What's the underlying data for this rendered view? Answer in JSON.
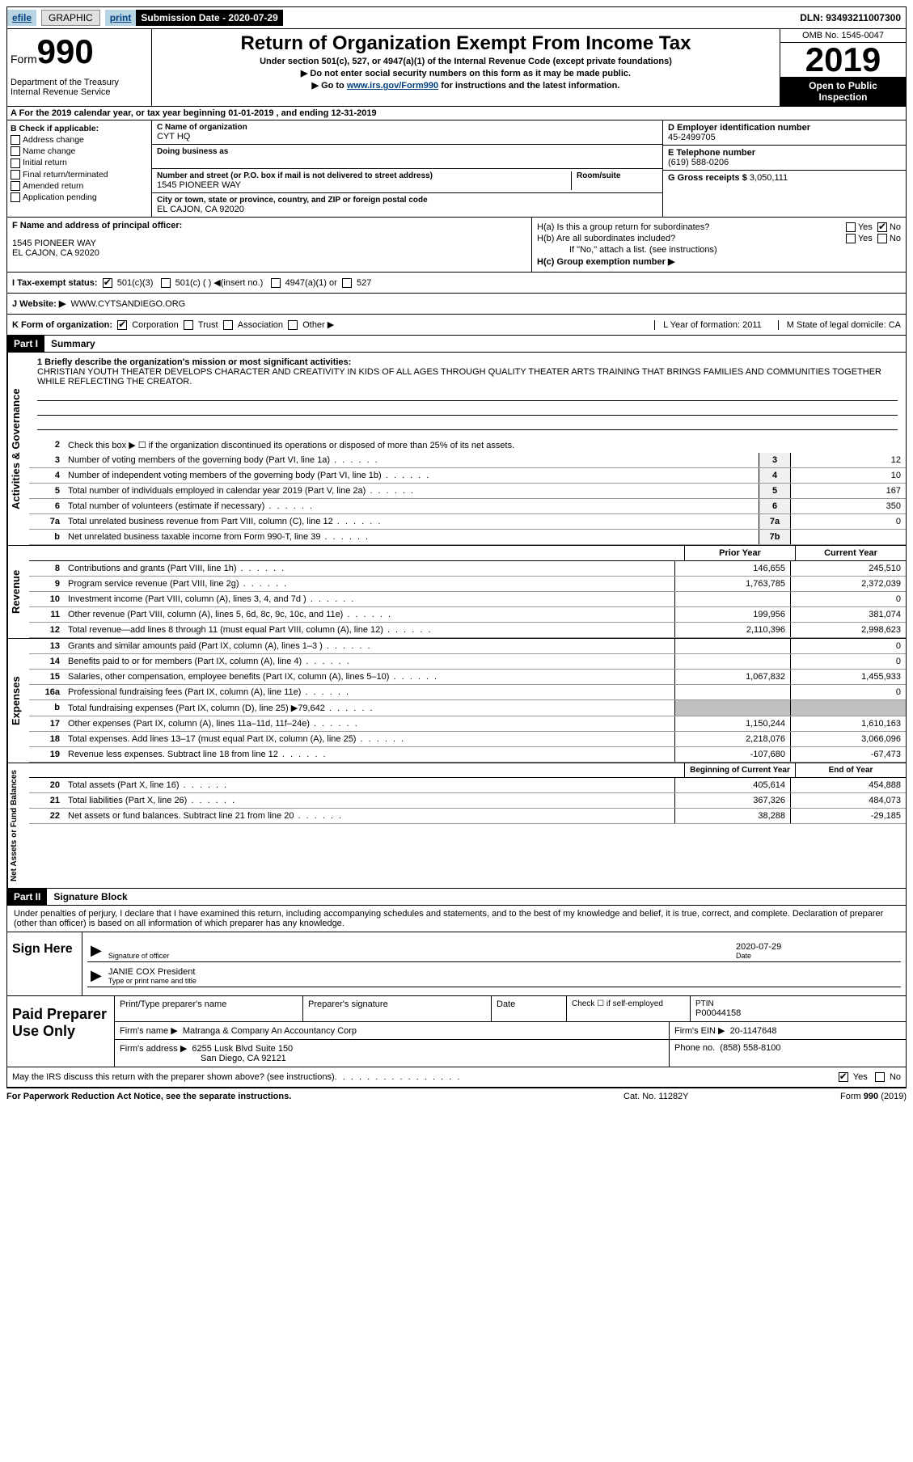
{
  "header": {
    "efile": "efile",
    "graphic": "GRAPHIC",
    "print": "print",
    "sub_date_label": "Submission Date - 2020-07-29",
    "dln": "DLN: 93493211007300"
  },
  "title": {
    "form": "Form",
    "num": "990",
    "main": "Return of Organization Exempt From Income Tax",
    "sub1": "Under section 501(c), 527, or 4947(a)(1) of the Internal Revenue Code (except private foundations)",
    "sub2": "Do not enter social security numbers on this form as it may be made public.",
    "sub3_pre": "Go to ",
    "sub3_link": "www.irs.gov/Form990",
    "sub3_post": " for instructions and the latest information.",
    "dept": "Department of the Treasury\nInternal Revenue Service",
    "omb": "OMB No. 1545-0047",
    "year": "2019",
    "open1": "Open to Public",
    "open2": "Inspection"
  },
  "rowA": {
    "text": "A For the 2019 calendar year, or tax year beginning 01-01-2019    , and ending 12-31-2019"
  },
  "B": {
    "label": "B Check if applicable:",
    "items": [
      "Address change",
      "Name change",
      "Initial return",
      "Final return/terminated",
      "Amended return",
      "Application pending"
    ]
  },
  "C": {
    "name_label": "C Name of organization",
    "name": "CYT HQ",
    "dba_label": "Doing business as",
    "addr_label": "Number and street (or P.O. box if mail is not delivered to street address)",
    "room_label": "Room/suite",
    "addr": "1545 PIONEER WAY",
    "city_label": "City or town, state or province, country, and ZIP or foreign postal code",
    "city": "EL CAJON, CA  92020"
  },
  "D": {
    "label": "D Employer identification number",
    "val": "45-2499705"
  },
  "E": {
    "label": "E Telephone number",
    "val": "(619) 588-0206"
  },
  "G": {
    "label": "G Gross receipts $",
    "val": "3,050,111"
  },
  "F": {
    "label": "F  Name and address of principal officer:",
    "addr1": "1545 PIONEER WAY",
    "addr2": "EL CAJON, CA  92020"
  },
  "H": {
    "a": "H(a)  Is this a group return for subordinates?",
    "b": "H(b)  Are all subordinates included?",
    "b_note": "If \"No,\" attach a list. (see instructions)",
    "c": "H(c)  Group exemption number ▶",
    "yes": "Yes",
    "no": "No"
  },
  "I": {
    "label": "I  Tax-exempt status:",
    "opts": [
      "501(c)(3)",
      "501(c) (  ) ◀(insert no.)",
      "4947(a)(1) or",
      "527"
    ]
  },
  "J": {
    "label": "J  Website: ▶",
    "val": "WWW.CYTSANDIEGO.ORG"
  },
  "K": {
    "label": "K Form of organization:",
    "opts": [
      "Corporation",
      "Trust",
      "Association",
      "Other ▶"
    ],
    "L": "L Year of formation: 2011",
    "M": "M State of legal domicile: CA"
  },
  "part1": {
    "hdr": "Part I",
    "title": "Summary",
    "mission_label": "1  Briefly describe the organization's mission or most significant activities:",
    "mission": "CHRISTIAN YOUTH THEATER DEVELOPS CHARACTER AND CREATIVITY IN KIDS OF ALL AGES THROUGH QUALITY THEATER ARTS TRAINING THAT BRINGS FAMILIES AND COMMUNITIES TOGETHER WHILE REFLECTING THE CREATOR.",
    "l2": "Check this box ▶ ☐  if the organization discontinued its operations or disposed of more than 25% of its net assets."
  },
  "activities": {
    "vert": "Activities & Governance",
    "rows": [
      {
        "n": "3",
        "t": "Number of voting members of the governing body (Part VI, line 1a)",
        "box": "3",
        "v": "12"
      },
      {
        "n": "4",
        "t": "Number of independent voting members of the governing body (Part VI, line 1b)",
        "box": "4",
        "v": "10"
      },
      {
        "n": "5",
        "t": "Total number of individuals employed in calendar year 2019 (Part V, line 2a)",
        "box": "5",
        "v": "167"
      },
      {
        "n": "6",
        "t": "Total number of volunteers (estimate if necessary)",
        "box": "6",
        "v": "350"
      },
      {
        "n": "7a",
        "t": "Total unrelated business revenue from Part VIII, column (C), line 12",
        "box": "7a",
        "v": "0"
      },
      {
        "n": "b",
        "t": "Net unrelated business taxable income from Form 990-T, line 39",
        "box": "7b",
        "v": ""
      }
    ]
  },
  "revenue": {
    "vert": "Revenue",
    "hdr_prior": "Prior Year",
    "hdr_curr": "Current Year",
    "rows": [
      {
        "n": "8",
        "t": "Contributions and grants (Part VIII, line 1h)",
        "p": "146,655",
        "c": "245,510"
      },
      {
        "n": "9",
        "t": "Program service revenue (Part VIII, line 2g)",
        "p": "1,763,785",
        "c": "2,372,039"
      },
      {
        "n": "10",
        "t": "Investment income (Part VIII, column (A), lines 3, 4, and 7d )",
        "p": "",
        "c": "0"
      },
      {
        "n": "11",
        "t": "Other revenue (Part VIII, column (A), lines 5, 6d, 8c, 9c, 10c, and 11e)",
        "p": "199,956",
        "c": "381,074"
      },
      {
        "n": "12",
        "t": "Total revenue—add lines 8 through 11 (must equal Part VIII, column (A), line 12)",
        "p": "2,110,396",
        "c": "2,998,623"
      }
    ]
  },
  "expenses": {
    "vert": "Expenses",
    "rows": [
      {
        "n": "13",
        "t": "Grants and similar amounts paid (Part IX, column (A), lines 1–3 )",
        "p": "",
        "c": "0"
      },
      {
        "n": "14",
        "t": "Benefits paid to or for members (Part IX, column (A), line 4)",
        "p": "",
        "c": "0"
      },
      {
        "n": "15",
        "t": "Salaries, other compensation, employee benefits (Part IX, column (A), lines 5–10)",
        "p": "1,067,832",
        "c": "1,455,933"
      },
      {
        "n": "16a",
        "t": "Professional fundraising fees (Part IX, column (A), line 11e)",
        "p": "",
        "c": "0"
      },
      {
        "n": "b",
        "t": "Total fundraising expenses (Part IX, column (D), line 25) ▶79,642",
        "p": "grey",
        "c": "grey"
      },
      {
        "n": "17",
        "t": "Other expenses (Part IX, column (A), lines 11a–11d, 11f–24e)",
        "p": "1,150,244",
        "c": "1,610,163"
      },
      {
        "n": "18",
        "t": "Total expenses. Add lines 13–17 (must equal Part IX, column (A), line 25)",
        "p": "2,218,076",
        "c": "3,066,096"
      },
      {
        "n": "19",
        "t": "Revenue less expenses. Subtract line 18 from line 12",
        "p": "-107,680",
        "c": "-67,473"
      }
    ]
  },
  "netassets": {
    "vert": "Net Assets or Fund Balances",
    "hdr_beg": "Beginning of Current Year",
    "hdr_end": "End of Year",
    "rows": [
      {
        "n": "20",
        "t": "Total assets (Part X, line 16)",
        "p": "405,614",
        "c": "454,888"
      },
      {
        "n": "21",
        "t": "Total liabilities (Part X, line 26)",
        "p": "367,326",
        "c": "484,073"
      },
      {
        "n": "22",
        "t": "Net assets or fund balances. Subtract line 21 from line 20",
        "p": "38,288",
        "c": "-29,185"
      }
    ]
  },
  "part2": {
    "hdr": "Part II",
    "title": "Signature Block",
    "decl": "Under penalties of perjury, I declare that I have examined this return, including accompanying schedules and statements, and to the best of my knowledge and belief, it is true, correct, and complete. Declaration of preparer (other than officer) is based on all information of which preparer has any knowledge."
  },
  "sign": {
    "here": "Sign Here",
    "sig_label": "Signature of officer",
    "date_label": "Date",
    "date": "2020-07-29",
    "name": "JANIE COX  President",
    "name_label": "Type or print name and title"
  },
  "prep": {
    "left": "Paid Preparer Use Only",
    "h1": "Print/Type preparer's name",
    "h2": "Preparer's signature",
    "h3": "Date",
    "h4": "Check ☐ if self-employed",
    "h5": "PTIN",
    "ptin": "P00044158",
    "firm_label": "Firm's name    ▶",
    "firm": "Matranga & Company An Accountancy Corp",
    "ein_label": "Firm's EIN ▶",
    "ein": "20-1147648",
    "addr_label": "Firm's address ▶",
    "addr1": "6255 Lusk Blvd Suite 150",
    "addr2": "San Diego, CA  92121",
    "phone_label": "Phone no.",
    "phone": "(858) 558-8100"
  },
  "discuss": {
    "q": "May the IRS discuss this return with the preparer shown above? (see instructions)",
    "yes": "Yes",
    "no": "No"
  },
  "footer": {
    "left": "For Paperwork Reduction Act Notice, see the separate instructions.",
    "mid": "Cat. No. 11282Y",
    "right": "Form 990 (2019)"
  }
}
